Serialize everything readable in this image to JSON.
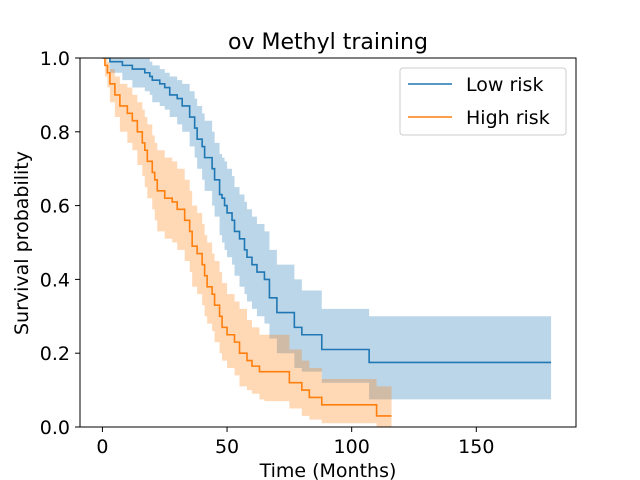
{
  "chart_data": {
    "type": "line",
    "title": "ov Methyl training",
    "xlabel": "Time (Months)",
    "ylabel": "Survival probability",
    "xlim": [
      -9,
      190
    ],
    "ylim": [
      0,
      1
    ],
    "xticks": [
      0,
      50,
      100,
      150
    ],
    "yticks": [
      0.0,
      0.2,
      0.4,
      0.6,
      0.8,
      1.0
    ],
    "xtick_labels": [
      "0",
      "50",
      "100",
      "150"
    ],
    "ytick_labels": [
      "0.0",
      "0.2",
      "0.4",
      "0.6",
      "0.8",
      "1.0"
    ],
    "grid": false,
    "legend": {
      "placement": "top-right"
    },
    "series": [
      {
        "name": "Low risk",
        "color": "#1f77b4",
        "band_color": "#1f77b4",
        "x": [
          0,
          3,
          8,
          12,
          17,
          19,
          20,
          23,
          25,
          27,
          30,
          32,
          35,
          37,
          38,
          40,
          41,
          44,
          45,
          47,
          48,
          49,
          50,
          52,
          53,
          55,
          57,
          58,
          60,
          62,
          65,
          67,
          70,
          77,
          80,
          88,
          107,
          180
        ],
        "y": [
          1.0,
          0.99,
          0.98,
          0.97,
          0.96,
          0.95,
          0.94,
          0.93,
          0.92,
          0.9,
          0.89,
          0.87,
          0.84,
          0.81,
          0.78,
          0.76,
          0.73,
          0.7,
          0.67,
          0.63,
          0.62,
          0.6,
          0.58,
          0.56,
          0.53,
          0.51,
          0.48,
          0.46,
          0.44,
          0.42,
          0.4,
          0.35,
          0.31,
          0.27,
          0.25,
          0.21,
          0.175,
          0.175
        ],
        "lower": [
          1.0,
          0.96,
          0.94,
          0.92,
          0.91,
          0.9,
          0.88,
          0.87,
          0.86,
          0.84,
          0.82,
          0.8,
          0.76,
          0.73,
          0.7,
          0.67,
          0.64,
          0.6,
          0.57,
          0.52,
          0.5,
          0.48,
          0.46,
          0.44,
          0.41,
          0.38,
          0.36,
          0.34,
          0.32,
          0.3,
          0.28,
          0.24,
          0.2,
          0.16,
          0.15,
          0.12,
          0.075,
          0.075
        ],
        "upper": [
          1.0,
          1.0,
          1.0,
          1.0,
          1.0,
          0.99,
          0.98,
          0.97,
          0.96,
          0.95,
          0.94,
          0.93,
          0.91,
          0.89,
          0.87,
          0.85,
          0.83,
          0.8,
          0.77,
          0.74,
          0.73,
          0.72,
          0.7,
          0.68,
          0.65,
          0.63,
          0.61,
          0.59,
          0.57,
          0.55,
          0.53,
          0.48,
          0.44,
          0.4,
          0.37,
          0.32,
          0.3,
          0.3
        ]
      },
      {
        "name": "High risk",
        "color": "#ff7f0e",
        "band_color": "#ff7f0e",
        "x": [
          0,
          1,
          2,
          3,
          5,
          7,
          10,
          12,
          14,
          16,
          17,
          18,
          20,
          21,
          22,
          25,
          28,
          30,
          33,
          35,
          36,
          38,
          40,
          41,
          42,
          44,
          45,
          47,
          48,
          50,
          53,
          55,
          58,
          60,
          63,
          65,
          70,
          75,
          80,
          83,
          88,
          100,
          110,
          113,
          116
        ],
        "y": [
          1.0,
          0.98,
          0.96,
          0.93,
          0.9,
          0.87,
          0.85,
          0.83,
          0.8,
          0.77,
          0.75,
          0.72,
          0.69,
          0.67,
          0.64,
          0.62,
          0.61,
          0.59,
          0.56,
          0.53,
          0.49,
          0.47,
          0.44,
          0.41,
          0.38,
          0.36,
          0.33,
          0.3,
          0.27,
          0.25,
          0.23,
          0.2,
          0.18,
          0.165,
          0.15,
          0.15,
          0.15,
          0.12,
          0.1,
          0.08,
          0.06,
          0.06,
          0.03,
          0.03,
          0.03
        ],
        "lower": [
          1.0,
          0.95,
          0.92,
          0.88,
          0.84,
          0.8,
          0.77,
          0.75,
          0.71,
          0.68,
          0.65,
          0.62,
          0.59,
          0.56,
          0.53,
          0.51,
          0.5,
          0.48,
          0.45,
          0.42,
          0.38,
          0.36,
          0.33,
          0.3,
          0.28,
          0.26,
          0.23,
          0.2,
          0.18,
          0.16,
          0.14,
          0.11,
          0.1,
          0.09,
          0.075,
          0.07,
          0.07,
          0.05,
          0.03,
          0.02,
          0.01,
          0.01,
          0.0,
          0.0,
          0.0
        ],
        "upper": [
          1.0,
          1.0,
          0.99,
          0.97,
          0.95,
          0.93,
          0.92,
          0.9,
          0.88,
          0.86,
          0.84,
          0.82,
          0.79,
          0.77,
          0.75,
          0.73,
          0.72,
          0.7,
          0.67,
          0.64,
          0.6,
          0.58,
          0.55,
          0.52,
          0.5,
          0.47,
          0.45,
          0.42,
          0.39,
          0.36,
          0.34,
          0.32,
          0.29,
          0.27,
          0.25,
          0.25,
          0.25,
          0.21,
          0.18,
          0.16,
          0.13,
          0.13,
          0.11,
          0.11,
          0.11
        ]
      }
    ]
  }
}
